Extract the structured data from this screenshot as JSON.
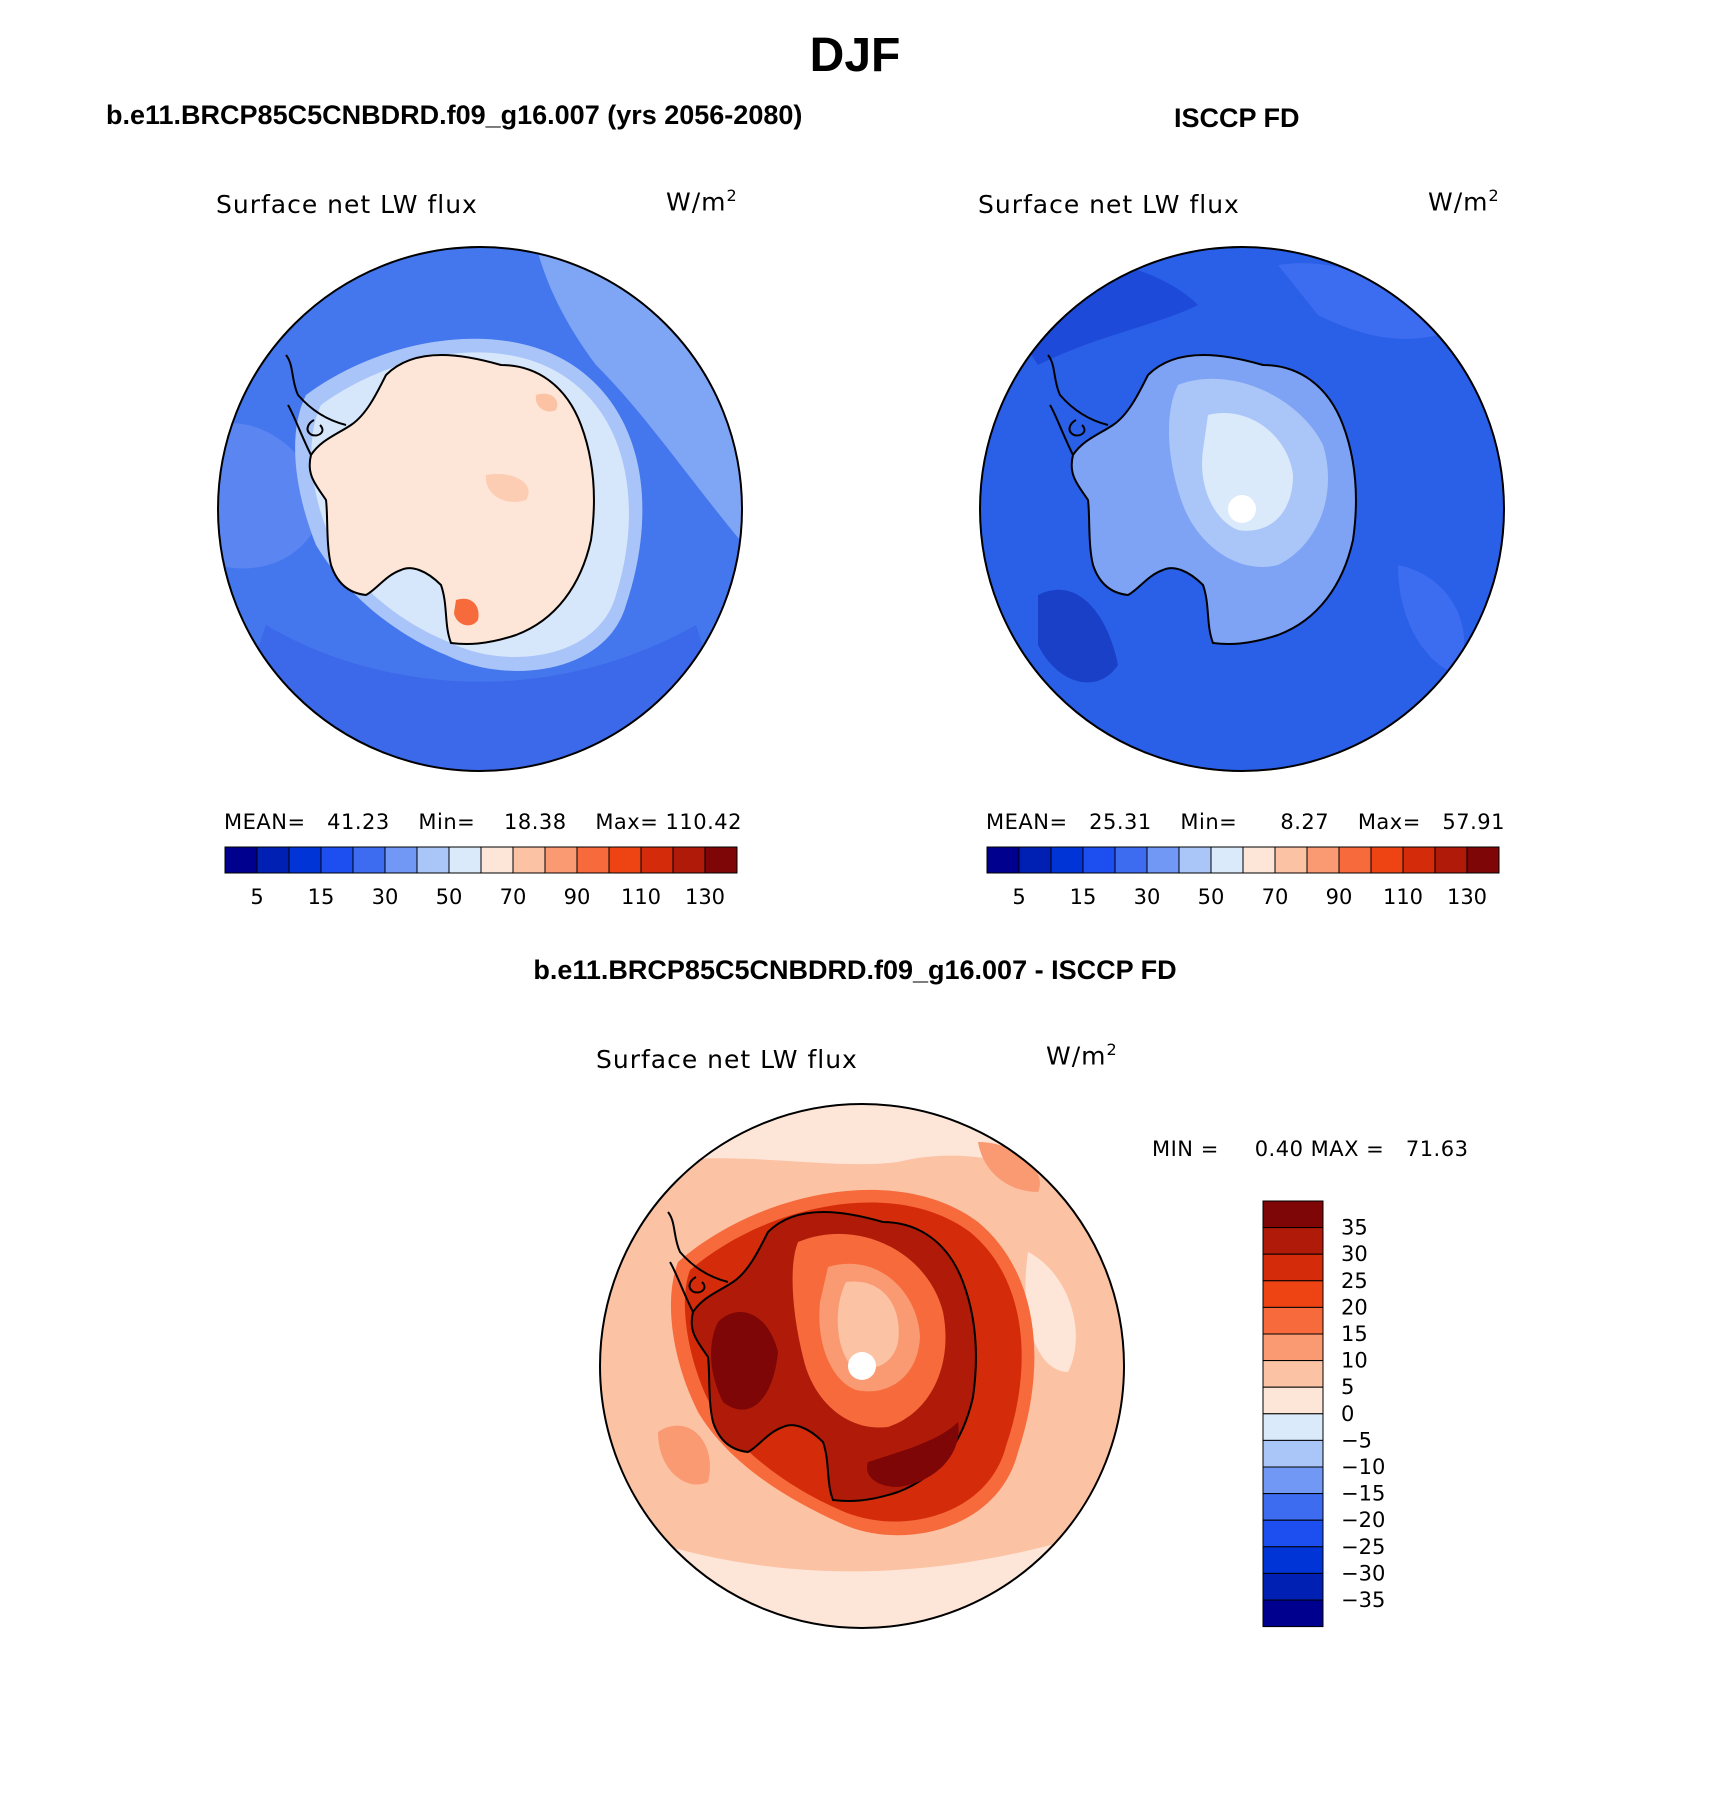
{
  "figure": {
    "title": "DJF",
    "panels": [
      {
        "id": "model",
        "case_title": "b.e11.BRCP85C5CNBDRD.f09_g16.007 (yrs 2056-2080)",
        "variable": "Surface net LW flux",
        "units_base": "W/m",
        "units_exp": "2",
        "stats": {
          "mean_label": "MEAN=",
          "mean": "41.23",
          "min_label": "Min=",
          "min": "18.38",
          "max_label": "Max=",
          "max": "110.42"
        }
      },
      {
        "id": "obs",
        "case_title": "ISCCP FD",
        "variable": "Surface net LW flux",
        "units_base": "W/m",
        "units_exp": "2",
        "stats": {
          "mean_label": "MEAN=",
          "mean": "25.31",
          "min_label": "Min=",
          "min": "8.27",
          "max_label": "Max=",
          "max": "57.91"
        }
      },
      {
        "id": "diff",
        "case_title": "b.e11.BRCP85C5CNBDRD.f09_g16.007 - ISCCP FD",
        "variable": "Surface net LW flux",
        "units_base": "W/m",
        "units_exp": "2",
        "stats": {
          "min_label": "MIN =",
          "min": "0.40",
          "max_label": "MAX =",
          "max": "71.63"
        }
      }
    ]
  },
  "abs_colorbar": {
    "colors": [
      "#00008f",
      "#0020b4",
      "#0034d6",
      "#1d4ef0",
      "#3d6cf0",
      "#7198f5",
      "#aac6f8",
      "#daeafb",
      "#fde6d8",
      "#fcc2a4",
      "#fa9a72",
      "#f66a3c",
      "#ee4414",
      "#d42c0a",
      "#b01a08",
      "#7e0606"
    ],
    "tick_labels": [
      "5",
      "15",
      "30",
      "50",
      "70",
      "90",
      "110",
      "130"
    ]
  },
  "diff_colorbar": {
    "colors": [
      "#7e0606",
      "#b01a08",
      "#d42c0a",
      "#ee4414",
      "#f66a3c",
      "#fa9a72",
      "#fcc2a4",
      "#fde6d8",
      "#daeafb",
      "#aac6f8",
      "#7198f5",
      "#3d6cf0",
      "#1d4ef0",
      "#0034d6",
      "#0020b4",
      "#00008f"
    ],
    "tick_labels": [
      "35",
      "30",
      "25",
      "20",
      "15",
      "10",
      "5",
      "0",
      "−5",
      "−10",
      "−15",
      "−20",
      "−25",
      "−30",
      "−35"
    ]
  }
}
